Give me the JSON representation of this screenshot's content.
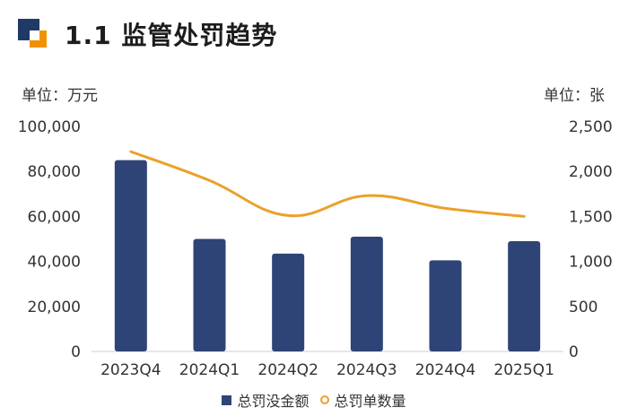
{
  "header": {
    "title": "1.1 监管处罚趋势"
  },
  "units": {
    "left": "单位：万元",
    "right": "单位：张"
  },
  "legend": {
    "bar_label": "总罚没金额",
    "line_label": "总罚单数量"
  },
  "colors": {
    "bar": "#2f4476",
    "line": "#eba12a",
    "logo_dark": "#1f3a66",
    "logo_orange": "#f29100"
  },
  "chart_data": {
    "type": "bar",
    "categories": [
      "2023Q4",
      "2024Q1",
      "2024Q2",
      "2024Q3",
      "2024Q4",
      "2025Q1"
    ],
    "series": [
      {
        "name": "总罚没金额",
        "type": "bar",
        "axis": "left",
        "values": [
          85000,
          50000,
          43500,
          51000,
          40500,
          49000
        ]
      },
      {
        "name": "总罚单数量",
        "type": "line",
        "axis": "right",
        "values": [
          2220,
          1900,
          1510,
          1730,
          1590,
          1500
        ]
      }
    ],
    "y_left": {
      "min": 0,
      "max": 100000,
      "ticks": [
        "0",
        "20,000",
        "40,000",
        "60,000",
        "80,000",
        "100,000"
      ]
    },
    "y_right": {
      "min": 0,
      "max": 2500,
      "ticks": [
        "0",
        "500",
        "1,000",
        "1,500",
        "2,000",
        "2,500"
      ]
    },
    "legend_position": "bottom"
  }
}
